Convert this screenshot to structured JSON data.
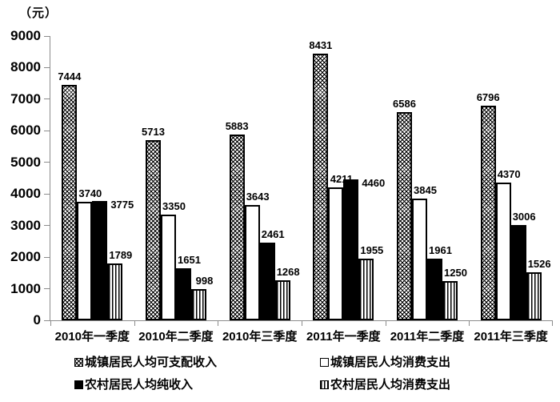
{
  "chart_data": {
    "type": "bar",
    "title": "（元）",
    "categories": [
      "2010年一季度",
      "2010年二季度",
      "2010年三季度",
      "2011年一季度",
      "2011年二季度",
      "2011年三季度"
    ],
    "series": [
      {
        "name": "城镇居民人均可支配收入",
        "pattern": "crosshatch",
        "values": [
          7444,
          5713,
          5883,
          8431,
          6586,
          6796
        ]
      },
      {
        "name": "城镇居民人均消费支出",
        "pattern": "white",
        "values": [
          3740,
          3350,
          3643,
          4211,
          3845,
          4370
        ]
      },
      {
        "name": "农村居民人均纯收入",
        "pattern": "solid",
        "values": [
          3775,
          1651,
          2461,
          4460,
          1961,
          3006
        ]
      },
      {
        "name": "农村居民人均消费支出",
        "pattern": "vstripe",
        "values": [
          1789,
          998,
          1268,
          1955,
          1250,
          1526
        ]
      }
    ],
    "ylim": [
      0,
      9000
    ],
    "ytick_interval": 1000,
    "ytick_labels": [
      "0",
      "1000",
      "2000",
      "3000",
      "4000",
      "5000",
      "6000",
      "7000",
      "8000",
      "9000"
    ],
    "grid": false,
    "value_labels": true,
    "side_value_labels": [
      {
        "category": 0,
        "series": 2
      },
      {
        "category": 3,
        "series": 2
      }
    ],
    "legend_position": "bottom",
    "colors": {
      "foreground": "#000000",
      "background": "#ffffff",
      "axis": "#8c8c8c"
    }
  }
}
